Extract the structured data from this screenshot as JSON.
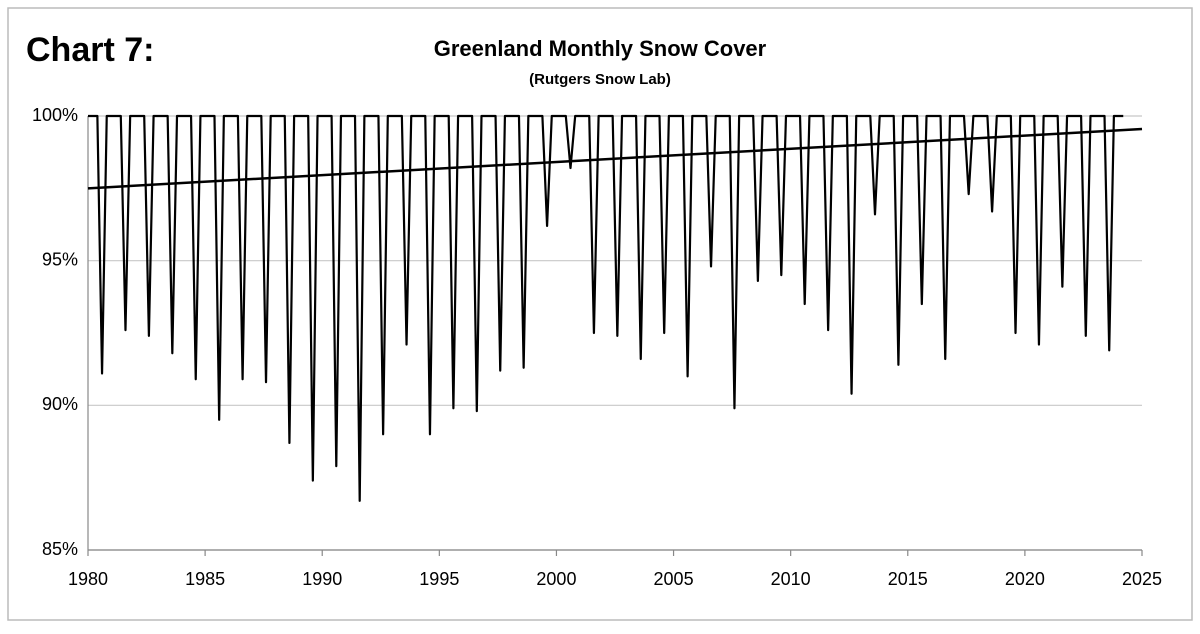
{
  "chart_data": {
    "type": "line",
    "annotation": "Chart 7:",
    "title": "Greenland Monthly Snow Cover",
    "subtitle": "(Rutgers Snow Lab)",
    "xlim": [
      1980,
      2025
    ],
    "xticks": [
      1980,
      1985,
      1990,
      1995,
      2000,
      2005,
      2010,
      2015,
      2020,
      2025
    ],
    "ylim": [
      85,
      100
    ],
    "yticks": [
      {
        "value": 85,
        "label": "85%"
      },
      {
        "value": 90,
        "label": "90%"
      },
      {
        "value": 95,
        "label": "95%"
      },
      {
        "value": 100,
        "label": "100%"
      }
    ],
    "grid": true,
    "series": [
      {
        "color": "#000000",
        "x": [
          1980,
          1980.4,
          1980.6,
          1980.8,
          1981.4,
          1981.6,
          1981.8,
          1982.4,
          1982.6,
          1982.8,
          1983.4,
          1983.6,
          1983.8,
          1984.4,
          1984.6,
          1984.8,
          1985.4,
          1985.6,
          1985.8,
          1986.4,
          1986.6,
          1986.8,
          1987.4,
          1987.6,
          1987.8,
          1988.4,
          1988.6,
          1988.8,
          1989.4,
          1989.6,
          1989.8,
          1990.4,
          1990.6,
          1990.8,
          1991.4,
          1991.6,
          1991.8,
          1992.4,
          1992.6,
          1992.8,
          1993.4,
          1993.6,
          1993.8,
          1994.4,
          1994.6,
          1994.8,
          1995.4,
          1995.6,
          1995.8,
          1996.4,
          1996.6,
          1996.8,
          1997.4,
          1997.6,
          1997.8,
          1998.4,
          1998.6,
          1998.8,
          1999.4,
          1999.6,
          1999.8,
          2000.4,
          2000.6,
          2000.8,
          2001.4,
          2001.6,
          2001.8,
          2002.4,
          2002.6,
          2002.8,
          2003.4,
          2003.6,
          2003.8,
          2004.4,
          2004.6,
          2004.8,
          2005.4,
          2005.6,
          2005.8,
          2006.4,
          2006.6,
          2006.8,
          2007.4,
          2007.6,
          2007.8,
          2008.4,
          2008.6,
          2008.8,
          2009.4,
          2009.6,
          2009.8,
          2010.4,
          2010.6,
          2010.8,
          2011.4,
          2011.6,
          2011.8,
          2012.4,
          2012.6,
          2012.8,
          2013.4,
          2013.6,
          2013.8,
          2014.4,
          2014.6,
          2014.8,
          2015.4,
          2015.6,
          2015.8,
          2016.4,
          2016.6,
          2016.8,
          2017.4,
          2017.6,
          2017.8,
          2018.4,
          2018.6,
          2018.8,
          2019.4,
          2019.6,
          2019.8,
          2020.4,
          2020.6,
          2020.8,
          2021.4,
          2021.6,
          2021.8,
          2022.4,
          2022.6,
          2022.8,
          2023.4,
          2023.6,
          2023.8,
          2024.2
        ],
        "values": [
          100,
          100,
          91.1,
          100,
          100,
          92.6,
          100,
          100,
          92.4,
          100,
          100,
          91.8,
          100,
          100,
          90.9,
          100,
          100,
          89.5,
          100,
          100,
          90.9,
          100,
          100,
          90.8,
          100,
          100,
          88.7,
          100,
          100,
          87.4,
          100,
          100,
          87.9,
          100,
          100,
          86.7,
          100,
          100,
          89.0,
          100,
          100,
          92.1,
          100,
          100,
          89.0,
          100,
          100,
          89.9,
          100,
          100,
          89.8,
          100,
          100,
          91.2,
          100,
          100,
          91.3,
          100,
          100,
          96.2,
          100,
          100,
          98.2,
          100,
          100,
          92.5,
          100,
          100,
          92.4,
          100,
          100,
          91.6,
          100,
          100,
          92.5,
          100,
          100,
          91.0,
          100,
          100,
          94.8,
          100,
          100,
          89.9,
          100,
          100,
          94.3,
          100,
          100,
          94.5,
          100,
          100,
          93.5,
          100,
          100,
          92.6,
          100,
          100,
          90.4,
          100,
          100,
          96.6,
          100,
          100,
          91.4,
          100,
          100,
          93.5,
          100,
          100,
          91.6,
          100,
          100,
          97.3,
          100,
          100,
          96.7,
          100,
          100,
          92.5,
          100,
          100,
          92.1,
          100,
          100,
          94.1,
          100,
          100,
          92.4,
          100,
          100,
          91.9,
          100,
          100
        ]
      },
      {
        "color": "#000000",
        "x": [
          1980,
          2025
        ],
        "values": [
          97.5,
          99.55
        ]
      }
    ]
  }
}
